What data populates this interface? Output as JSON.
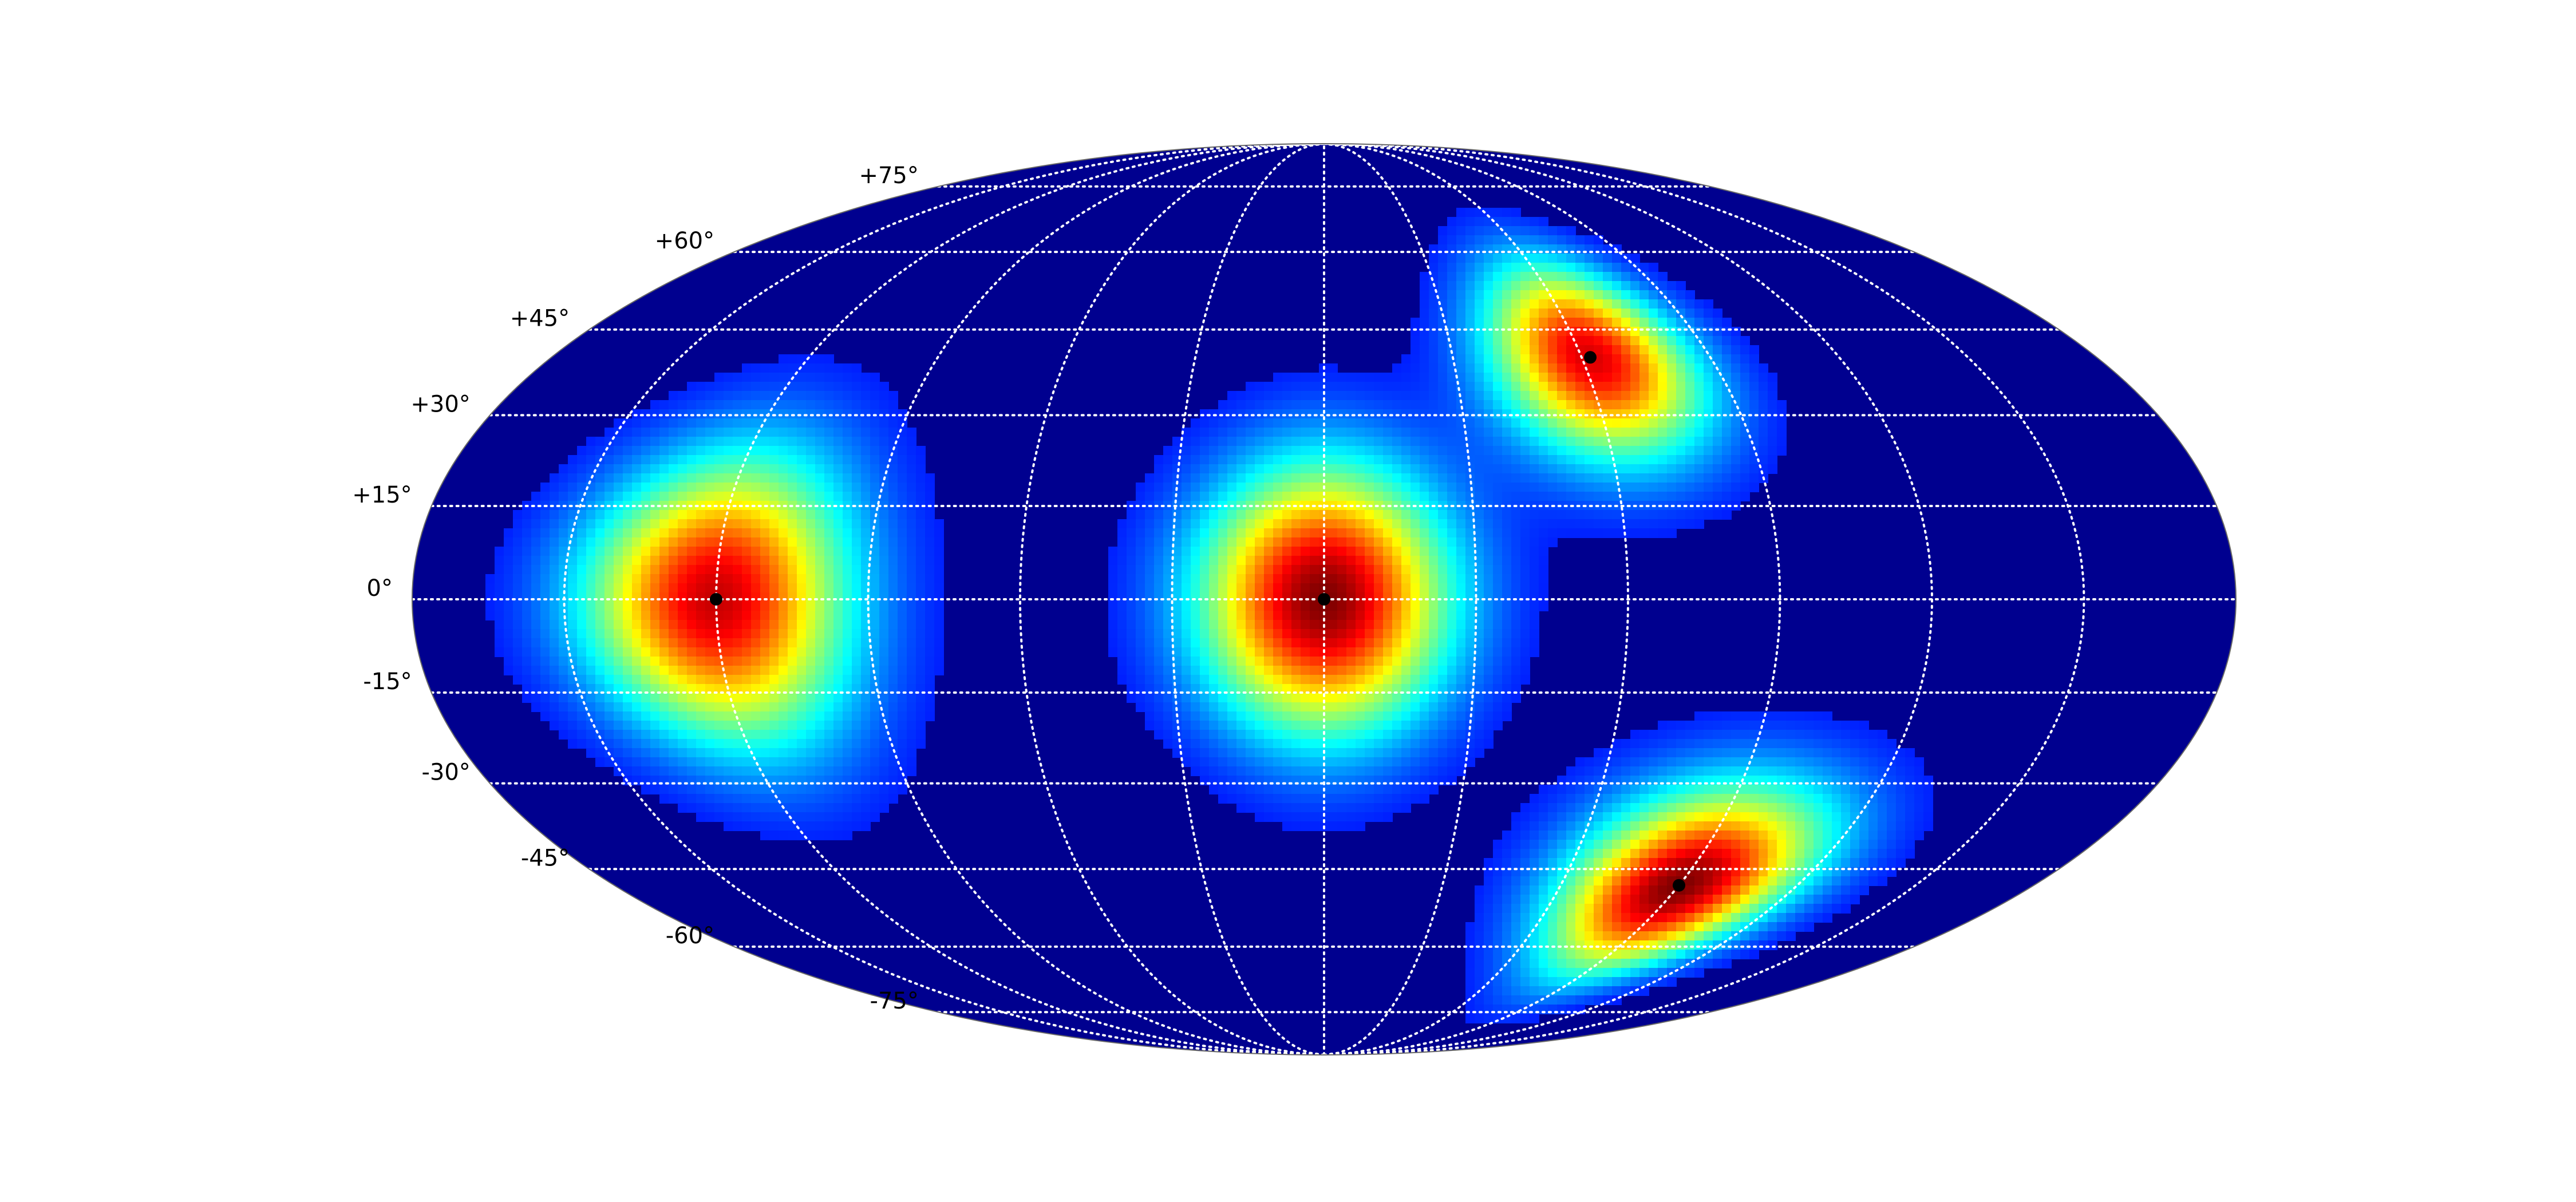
{
  "chart_data": {
    "type": "heatmap",
    "projection": "mollweide",
    "colormap": "jet",
    "grid": true,
    "lat_ticks": [
      {
        "value": 75,
        "label": "+75°"
      },
      {
        "value": 60,
        "label": "+60°"
      },
      {
        "value": 45,
        "label": "+45°"
      },
      {
        "value": 30,
        "label": "+30°"
      },
      {
        "value": 15,
        "label": "+15°"
      },
      {
        "value": 0,
        "label": "0°"
      },
      {
        "value": -15,
        "label": "-15°"
      },
      {
        "value": -30,
        "label": "-30°"
      },
      {
        "value": -45,
        "label": "-45°"
      },
      {
        "value": -60,
        "label": "-60°"
      },
      {
        "value": -75,
        "label": "-75°"
      }
    ],
    "meridians_deg": [
      -150,
      -120,
      -90,
      -60,
      -30,
      0,
      30,
      60,
      90,
      120,
      150
    ],
    "peaks": [
      {
        "lon": -120,
        "lat": 0,
        "intensity": 0.92,
        "sigma_lon": 18,
        "sigma_lat": 16
      },
      {
        "lon": 0,
        "lat": 0,
        "intensity": 1.0,
        "sigma_lon": 17,
        "sigma_lat": 15
      },
      {
        "lon": 62,
        "lat": 40,
        "intensity": 0.9,
        "sigma_lon": 16,
        "sigma_lat": 12
      },
      {
        "lon": 90,
        "lat": -48,
        "intensity": 1.0,
        "sigma_lon": 20,
        "sigma_lat": 12
      }
    ],
    "markers": [
      {
        "lon": -120,
        "lat": 0
      },
      {
        "lon": 0,
        "lat": 0
      },
      {
        "lon": 62,
        "lat": 40
      },
      {
        "lon": 90,
        "lat": -48
      }
    ],
    "colors": {
      "background": "#00008f",
      "grid": "#ffffff",
      "marker": "#000000",
      "border": "#666666"
    }
  }
}
